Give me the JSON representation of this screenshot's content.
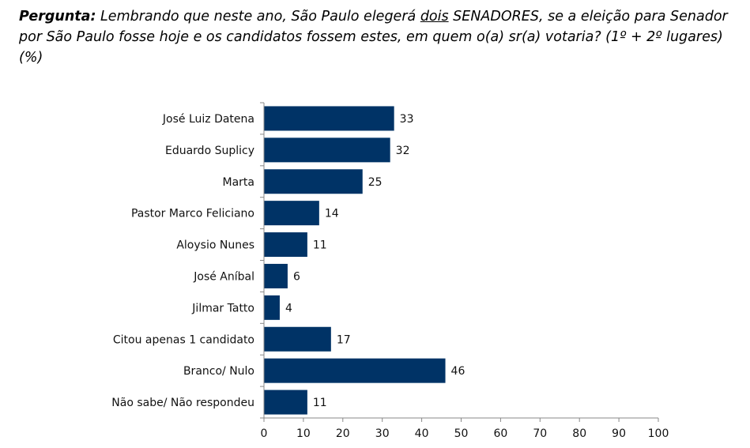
{
  "question": {
    "label": "Pergunta:",
    "text_before": " Lembrando que neste ano, São Paulo elegerá ",
    "text_underlined": "dois",
    "text_after": " SENADORES, se a eleição para Senador por São Paulo fosse hoje e os candidatos fossem estes, em quem o(a) sr(a) votaria? (1º + 2º lugares) (%)"
  },
  "colors": {
    "bar": "#003366",
    "axis": "#888888",
    "text": "#111111"
  },
  "chart_data": {
    "type": "bar",
    "orientation": "horizontal",
    "categories": [
      "José Luiz Datena",
      "Eduardo Suplicy",
      "Marta",
      "Pastor Marco Feliciano",
      "Aloysio Nunes",
      "José Aníbal",
      "Jilmar Tatto",
      "Citou apenas 1 candidato",
      "Branco/ Nulo",
      "Não sabe/ Não respondeu"
    ],
    "values": [
      33,
      32,
      25,
      14,
      11,
      6,
      4,
      17,
      46,
      11
    ],
    "xlim": [
      0,
      100
    ],
    "xticks": [
      0,
      10,
      20,
      30,
      40,
      50,
      60,
      70,
      80,
      90,
      100
    ],
    "data_labels": true,
    "grid": false,
    "legend": "none"
  }
}
